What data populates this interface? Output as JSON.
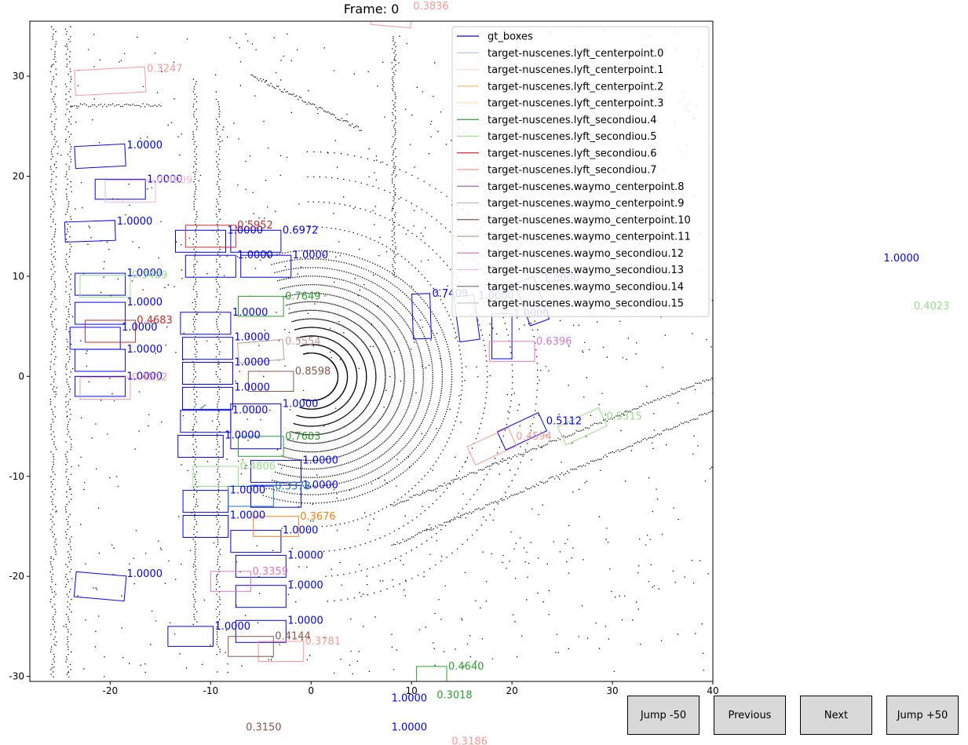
{
  "title": "Frame: 0",
  "buttons": {
    "jump_back": "Jump -50",
    "previous": "Previous",
    "next": "Next",
    "jump_forward": "Jump +50"
  },
  "chart_data": {
    "type": "scatter",
    "title": "Frame: 0",
    "xlim": [
      -28,
      40
    ],
    "ylim": [
      -30.5,
      35.5
    ],
    "x_ticks": [
      -20,
      -10,
      0,
      10,
      20,
      30,
      40
    ],
    "y_ticks": [
      -30,
      -20,
      -10,
      0,
      10,
      20,
      30
    ],
    "legend_position": "top-right",
    "legend": [
      {
        "label": "gt_boxes",
        "color": "#0000ff"
      },
      {
        "label": "target-nuscenes.lyft_centerpoint.0",
        "color": "#aec7e8"
      },
      {
        "label": "target-nuscenes.lyft_centerpoint.1",
        "color": "#f7dccf"
      },
      {
        "label": "target-nuscenes.lyft_centerpoint.2",
        "color": "#ffbb78"
      },
      {
        "label": "target-nuscenes.lyft_centerpoint.3",
        "color": "#fde2b8"
      },
      {
        "label": "target-nuscenes.lyft_secondiou.4",
        "color": "#2ca02c"
      },
      {
        "label": "target-nuscenes.lyft_secondiou.5",
        "color": "#98df8a"
      },
      {
        "label": "target-nuscenes.lyft_secondiou.6",
        "color": "#d62728"
      },
      {
        "label": "target-nuscenes.lyft_secondiou.7",
        "color": "#ff9896"
      },
      {
        "label": "target-nuscenes.waymo_centerpoint.8",
        "color": "#9467bd"
      },
      {
        "label": "target-nuscenes.waymo_centerpoint.9",
        "color": "#c5b0d5"
      },
      {
        "label": "target-nuscenes.waymo_centerpoint.10",
        "color": "#8c564b"
      },
      {
        "label": "target-nuscenes.waymo_centerpoint.11",
        "color": "#c49c94"
      },
      {
        "label": "target-nuscenes.waymo_secondiou.12",
        "color": "#e377c2"
      },
      {
        "label": "target-nuscenes.waymo_secondiou.13",
        "color": "#f7b6d2"
      },
      {
        "label": "target-nuscenes.waymo_secondiou.14",
        "color": "#7f7f7f"
      },
      {
        "label": "target-nuscenes.waymo_secondiou.15",
        "color": "#c7c7c7"
      }
    ],
    "boxes": [
      {
        "x": -21,
        "y": 22,
        "w": 5,
        "h": 2.2,
        "a": 3,
        "c": "#0000ff",
        "l": "1.0000"
      },
      {
        "x": -19,
        "y": 18.7,
        "w": 5,
        "h": 2,
        "a": 0,
        "c": "#0000ff",
        "l": "1.0000"
      },
      {
        "x": -22,
        "y": 14.5,
        "w": 5,
        "h": 2,
        "a": 2,
        "c": "#0000ff",
        "l": "1.0000"
      },
      {
        "x": -21,
        "y": 9.2,
        "w": 5,
        "h": 2.2,
        "a": 0,
        "c": "#0000ff",
        "l": "1.0000"
      },
      {
        "x": -21,
        "y": 6.3,
        "w": 5,
        "h": 2.2,
        "a": 0,
        "c": "#0000ff",
        "l": "1.0000"
      },
      {
        "x": -21.5,
        "y": 3.8,
        "w": 5,
        "h": 2.2,
        "a": 0,
        "c": "#0000ff",
        "l": "1.0000"
      },
      {
        "x": -21,
        "y": 1.6,
        "w": 5,
        "h": 2.2,
        "a": 0,
        "c": "#0000ff",
        "l": "1.0000"
      },
      {
        "x": -21,
        "y": -1,
        "w": 5,
        "h": 2,
        "a": 0,
        "c": "#0000ff",
        "l": "1.0000"
      },
      {
        "x": -11,
        "y": 13.5,
        "w": 5,
        "h": 2.2,
        "a": 0,
        "c": "#0000ff",
        "l": "1.0000"
      },
      {
        "x": -10,
        "y": 11,
        "w": 5,
        "h": 2.2,
        "a": 0,
        "c": "#0000ff",
        "l": "1.0000"
      },
      {
        "x": -5.5,
        "y": 13.5,
        "w": 5,
        "h": 2.2,
        "a": 0,
        "c": "#0000ff",
        "l": "0.6972"
      },
      {
        "x": -4.5,
        "y": 11,
        "w": 5,
        "h": 2.2,
        "a": 0,
        "c": "#0000ff",
        "l": "1.0000"
      },
      {
        "x": -10.5,
        "y": 5.3,
        "w": 5,
        "h": 2.2,
        "a": 0,
        "c": "#0000ff",
        "l": "1.0000"
      },
      {
        "x": -10.3,
        "y": 2.8,
        "w": 5,
        "h": 2.2,
        "a": 0,
        "c": "#0000ff",
        "l": "1.0000"
      },
      {
        "x": -10.3,
        "y": 0.3,
        "w": 5,
        "h": 2.2,
        "a": 0,
        "c": "#0000ff",
        "l": "1.0000"
      },
      {
        "x": -10.3,
        "y": -2.2,
        "w": 5,
        "h": 2.2,
        "a": 0,
        "c": "#0000ff",
        "l": "1.0000"
      },
      {
        "x": -10.5,
        "y": -4.5,
        "w": 5,
        "h": 2.2,
        "a": 0,
        "c": "#0000ff",
        "l": "1.0000"
      },
      {
        "x": -11,
        "y": -7,
        "w": 4.5,
        "h": 2.2,
        "a": 0,
        "c": "#0000ff",
        "l": "1.0000"
      },
      {
        "x": -5.5,
        "y": -5,
        "w": 5,
        "h": 4.5,
        "a": 0,
        "c": "#0000ff",
        "l": "1.0000"
      },
      {
        "x": -3.5,
        "y": -9.5,
        "w": 5,
        "h": 2.2,
        "a": 0,
        "c": "#0000ff",
        "l": "1.0000"
      },
      {
        "x": -3.5,
        "y": -12,
        "w": 5,
        "h": 2.2,
        "a": 0,
        "c": "#0000ff",
        "l": "1.0000"
      },
      {
        "x": -10.5,
        "y": -12.5,
        "w": 4.5,
        "h": 2.2,
        "a": 0,
        "c": "#0000ff",
        "l": "1.0000"
      },
      {
        "x": -10.5,
        "y": -15,
        "w": 4.5,
        "h": 2.2,
        "a": 0,
        "c": "#0000ff",
        "l": "1.0000"
      },
      {
        "x": -5.5,
        "y": -16.5,
        "w": 5,
        "h": 2.2,
        "a": 0,
        "c": "#0000ff",
        "l": "1.0000"
      },
      {
        "x": -5,
        "y": -19,
        "w": 5,
        "h": 2.2,
        "a": 0,
        "c": "#0000ff",
        "l": "1.0000"
      },
      {
        "x": -5,
        "y": -22,
        "w": 5,
        "h": 2.2,
        "a": 0,
        "c": "#0000ff",
        "l": "1.0000"
      },
      {
        "x": -5,
        "y": -25.5,
        "w": 5,
        "h": 2.2,
        "a": 0,
        "c": "#0000ff",
        "l": "1.0000"
      },
      {
        "x": -12,
        "y": -26,
        "w": 4.5,
        "h": 2,
        "a": 0,
        "c": "#0000ff",
        "l": "1.0000"
      },
      {
        "x": -21,
        "y": -21,
        "w": 5,
        "h": 2.5,
        "a": -5,
        "c": "#0000ff",
        "l": "1.0000"
      },
      {
        "x": 11,
        "y": 6,
        "w": 1.8,
        "h": 4.5,
        "a": 2,
        "c": "#0000ff",
        "l": "0.7409"
      },
      {
        "x": 15.5,
        "y": 5.8,
        "w": 2,
        "h": 4.5,
        "a": 8,
        "c": "#0000ff",
        "l": "1.0000"
      },
      {
        "x": 19,
        "y": 4,
        "w": 2,
        "h": 4.5,
        "a": 0,
        "c": "#0000ff",
        "l": "1.0000"
      },
      {
        "x": 22,
        "y": 7.5,
        "w": 2,
        "h": 4.5,
        "a": 20,
        "c": "#0000ff",
        "l": "1.0000"
      },
      {
        "x": 21,
        "y": -5.5,
        "w": 4.5,
        "h": 2,
        "a": 25,
        "c": "#0000ff",
        "l": "0.5112"
      },
      {
        "x": -20,
        "y": 29.5,
        "w": 7,
        "h": 2.5,
        "a": 3,
        "c": "#ff9896",
        "l": "0.3247"
      },
      {
        "x": 27,
        "y": -5,
        "w": 4.5,
        "h": 2,
        "a": 25,
        "c": "#98df8a",
        "l": "0.5315"
      },
      {
        "x": -18,
        "y": 18.5,
        "w": 5,
        "h": 2.2,
        "a": 0,
        "c": "#f7b6d2",
        "l": "0.4009"
      },
      {
        "x": -10,
        "y": 14,
        "w": 5,
        "h": 2.2,
        "a": 0,
        "c": "#d62728",
        "l": "0.5952"
      },
      {
        "x": -20.5,
        "y": 9,
        "w": 5,
        "h": 2.2,
        "a": 0,
        "c": "#98df8a",
        "l": "0.3489"
      },
      {
        "x": -20,
        "y": 4.5,
        "w": 5,
        "h": 2.2,
        "a": 0,
        "c": "#d62728",
        "l": "0.4683"
      },
      {
        "x": -20.5,
        "y": -1.2,
        "w": 5,
        "h": 2.2,
        "a": 0,
        "c": "#ff9896",
        "l": "0.4512"
      },
      {
        "x": -5,
        "y": 2.5,
        "w": 4.5,
        "h": 2,
        "a": 5,
        "c": "#c49c94",
        "l": "0.5554"
      },
      {
        "x": -4,
        "y": -0.5,
        "w": 4.5,
        "h": 2,
        "a": 0,
        "c": "#8c564b",
        "l": "0.8598"
      },
      {
        "x": -9.5,
        "y": -10,
        "w": 4.5,
        "h": 2,
        "a": 0,
        "c": "#98df8a",
        "l": "0.4806"
      },
      {
        "x": -6,
        "y": -12,
        "w": 4.5,
        "h": 2,
        "a": 0,
        "c": "#1f77b4",
        "l": "0.3378"
      },
      {
        "x": -3.5,
        "y": -15,
        "w": 4.5,
        "h": 2,
        "a": 0,
        "c": "#ff7f0e",
        "l": "0.3676"
      },
      {
        "x": -3,
        "y": -27.5,
        "w": 4.5,
        "h": 2,
        "a": 0,
        "c": "#ff9896",
        "l": "0.3781"
      },
      {
        "x": -6,
        "y": -27,
        "w": 4.5,
        "h": 2,
        "a": 0,
        "c": "#8c564b",
        "l": "0.4144"
      },
      {
        "x": -8,
        "y": -20.5,
        "w": 4,
        "h": 2,
        "a": 0,
        "c": "#e377c2",
        "l": "0.3359"
      },
      {
        "x": -5,
        "y": -7,
        "w": 4.5,
        "h": 2,
        "a": 0,
        "c": "#2ca02c",
        "l": "0.7603"
      },
      {
        "x": -5,
        "y": 7,
        "w": 4.5,
        "h": 2,
        "a": 0,
        "c": "#2ca02c",
        "l": "0.7649"
      },
      {
        "x": 20,
        "y": 2.5,
        "w": 4.5,
        "h": 2,
        "a": 0,
        "c": "#e377c2",
        "l": "0.6396"
      },
      {
        "x": 18,
        "y": -7,
        "w": 4.5,
        "h": 2,
        "a": 25,
        "c": "#ff9896",
        "l": "0.4594"
      },
      {
        "x": 12,
        "y": -30,
        "w": 3,
        "h": 2,
        "a": 0,
        "c": "#2ca02c",
        "l": "0.4640"
      },
      {
        "x": 8,
        "y": 36,
        "w": 4,
        "h": 2,
        "a": -5,
        "c": "#ff9896",
        "l": "0.3836"
      }
    ],
    "outside_labels": [
      {
        "x": 57,
        "y": 11.5,
        "c": "#0000ff",
        "l": "1.0000"
      },
      {
        "x": 60,
        "y": 6.7,
        "c": "#98df8a",
        "l": "0.4023"
      },
      {
        "x": 8,
        "y": -32.5,
        "c": "#0000ff",
        "l": "1.0000"
      },
      {
        "x": 12.5,
        "y": -32.2,
        "c": "#2ca02c",
        "l": "0.3018"
      },
      {
        "x": 8,
        "y": -35.4,
        "c": "#0000ff",
        "l": "1.0000"
      },
      {
        "x": -6.5,
        "y": -35.4,
        "c": "#8c564b",
        "l": "0.3150"
      },
      {
        "x": 14,
        "y": -36.8,
        "c": "#ff9896",
        "l": "0.3186"
      }
    ]
  }
}
